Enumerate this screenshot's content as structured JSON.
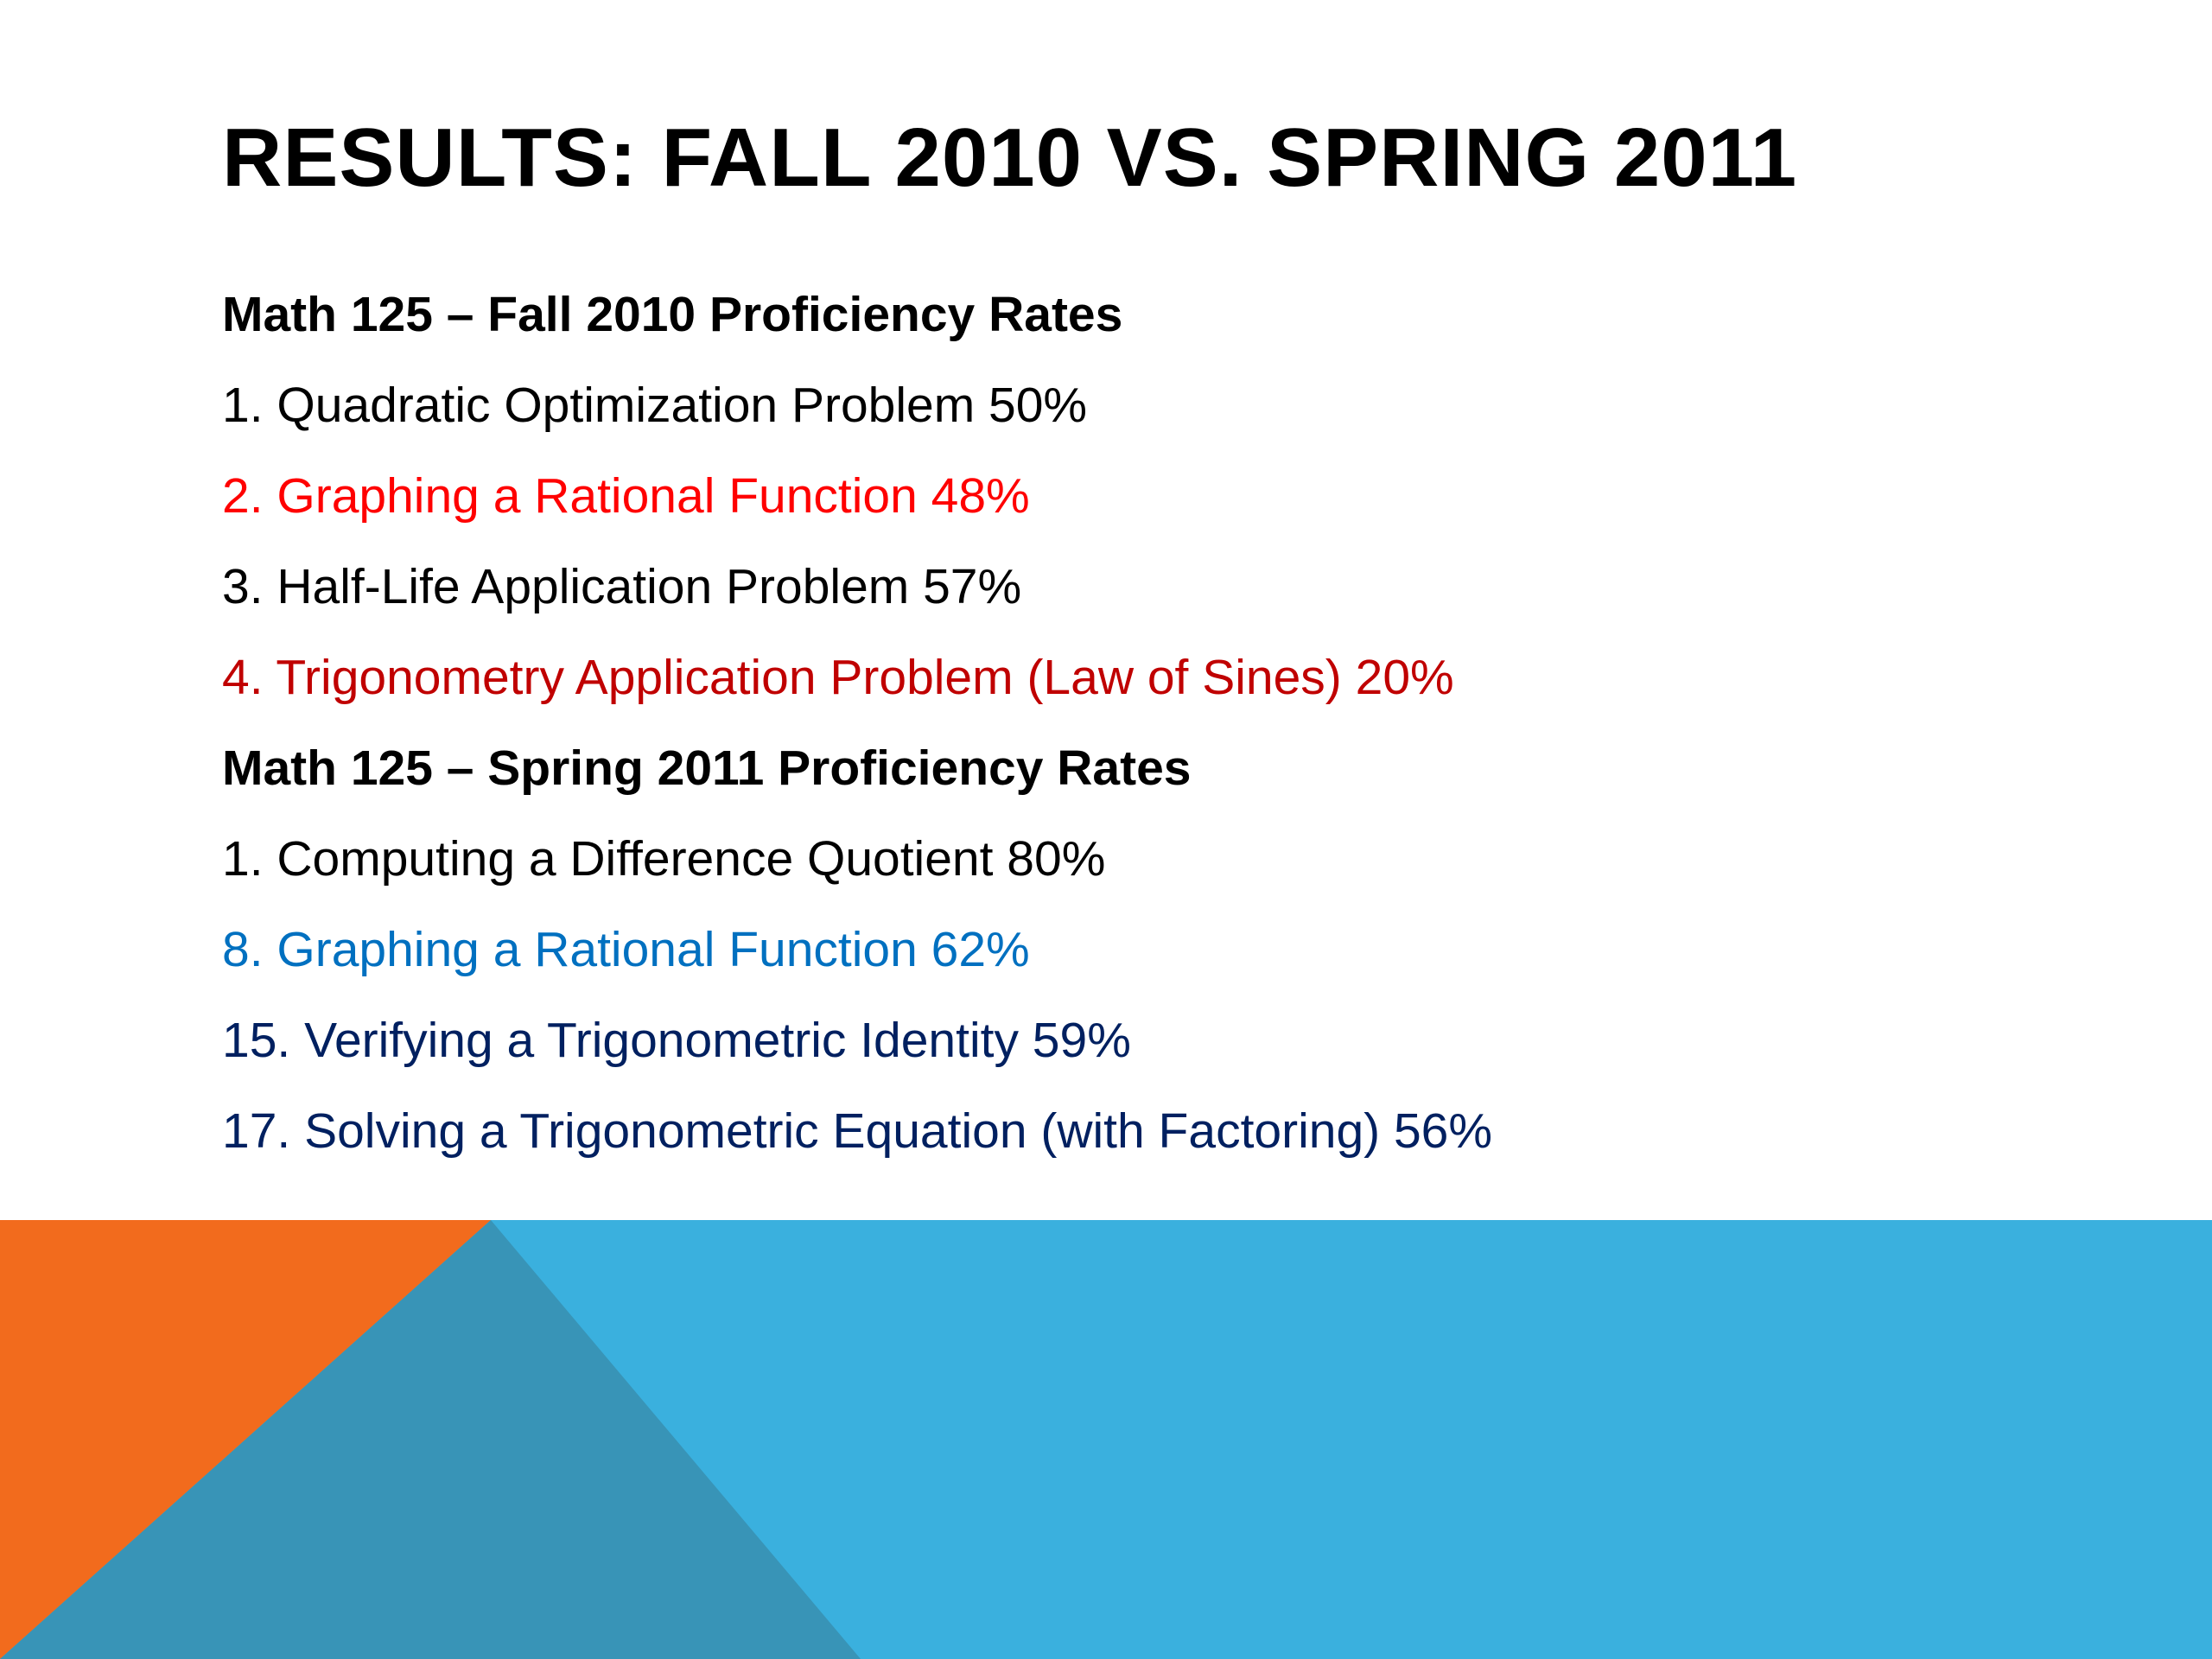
{
  "slide": {
    "title": "RESULTS: FALL 2010 VS. SPRING 2011",
    "lines": [
      {
        "text": "Math 125 – Fall 2010 Proficiency Rates",
        "color": "#000000",
        "heading": true
      },
      {
        "text": "1. Quadratic Optimization Problem 50%",
        "color": "#000000"
      },
      {
        "text": "2. Graphing a Rational Function 48%",
        "color": "#ff0000"
      },
      {
        "text": "3. Half-Life Application Problem 57%",
        "color": "#000000"
      },
      {
        "text": "4. Trigonometry Application Problem (Law of Sines) 20%",
        "color": "#c00000"
      },
      {
        "text": "Math 125 – Spring 2011 Proficiency Rates",
        "color": "#000000",
        "heading": true
      },
      {
        "text": "1. Computing a Difference Quotient 80%",
        "color": "#000000"
      },
      {
        "text": "8. Graphing a Rational Function 62%",
        "color": "#0070c0"
      },
      {
        "text": "15. Verifying a Trigonometric Identity 59%",
        "color": "#002060"
      },
      {
        "text": "17. Solving a Trigonometric Equation (with Factoring) 56%",
        "color": "#002060"
      }
    ]
  },
  "colors": {
    "orange": "#f26b1d",
    "light_blue": "#3ab0de",
    "steel_blue": "#3894b7"
  }
}
